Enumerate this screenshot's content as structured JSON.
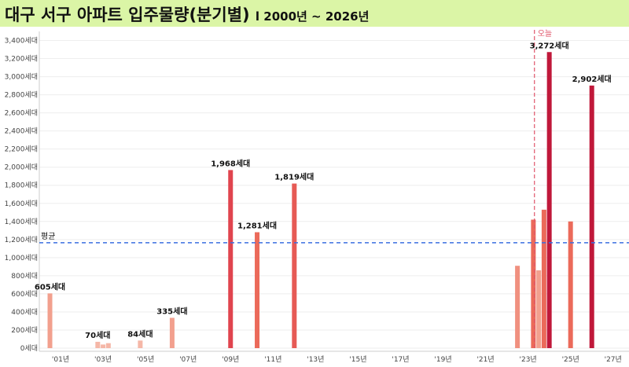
{
  "title": "대구 서구 아파트 입주물량(분기별)",
  "subtitle": "l 2000년 ~ 2026년",
  "chart_data": {
    "type": "bar",
    "y_unit": "세대",
    "ylim": [
      0,
      3500
    ],
    "y_ticks": [
      0,
      200,
      400,
      600,
      800,
      1000,
      1200,
      1400,
      1600,
      1800,
      2000,
      2200,
      2400,
      2600,
      2800,
      3000,
      3200,
      3400
    ],
    "y_tick_labels": [
      "0세대",
      "200세대",
      "400세대",
      "600세대",
      "800세대",
      "1,000세대",
      "1,200세대",
      "1,400세대",
      "1,600세대",
      "1,800세대",
      "2,000세대",
      "2,200세대",
      "2,400세대",
      "2,600세대",
      "2,800세대",
      "3,000세대",
      "3,200세대",
      "3,400세대"
    ],
    "x_range": [
      2000.0,
      2027.75
    ],
    "x_ticks": [
      2001,
      2003,
      2005,
      2007,
      2009,
      2011,
      2013,
      2015,
      2017,
      2019,
      2021,
      2023,
      2025,
      2027
    ],
    "x_tick_labels": [
      "'01년",
      "'03년",
      "'05년",
      "'07년",
      "'09년",
      "'11년",
      "'13년",
      "'15년",
      "'17년",
      "'19년",
      "'21년",
      "'23년",
      "'25년",
      "'27년"
    ],
    "bars": [
      {
        "x": 2000.5,
        "value": 605,
        "color": "#f2a08e",
        "label": "605세대"
      },
      {
        "x": 2002.75,
        "value": 70,
        "color": "#f5b7a7",
        "label": "70세대"
      },
      {
        "x": 2003.0,
        "value": 40,
        "color": "#f5b7a7",
        "label": ""
      },
      {
        "x": 2003.25,
        "value": 55,
        "color": "#f5b7a7",
        "label": ""
      },
      {
        "x": 2004.75,
        "value": 84,
        "color": "#f5b7a7",
        "label": "84세대"
      },
      {
        "x": 2006.25,
        "value": 335,
        "color": "#f2a08e",
        "label": "335세대"
      },
      {
        "x": 2009.0,
        "value": 1968,
        "color": "#e0444e",
        "label": "1,968세대"
      },
      {
        "x": 2010.25,
        "value": 1281,
        "color": "#eb6a5a",
        "label": "1,281세대"
      },
      {
        "x": 2012.0,
        "value": 1819,
        "color": "#e65a55",
        "label": "1,819세대"
      },
      {
        "x": 2022.5,
        "value": 910,
        "color": "#f0907f",
        "label": ""
      },
      {
        "x": 2023.25,
        "value": 1420,
        "color": "#eb6a5a",
        "label": ""
      },
      {
        "x": 2023.5,
        "value": 860,
        "color": "#f2a08e",
        "label": ""
      },
      {
        "x": 2023.75,
        "value": 1530,
        "color": "#eb6a5a",
        "label": ""
      },
      {
        "x": 2024.0,
        "value": 3272,
        "color": "#c0183a",
        "label": "3,272세대"
      },
      {
        "x": 2025.0,
        "value": 1400,
        "color": "#eb6a5a",
        "label": ""
      },
      {
        "x": 2026.0,
        "value": 2902,
        "color": "#c0183a",
        "label": "2,902세대"
      }
    ],
    "average": {
      "value": 1165,
      "label": "평균"
    },
    "today": {
      "x": 2023.3,
      "label": "오늘"
    },
    "grid": true
  }
}
